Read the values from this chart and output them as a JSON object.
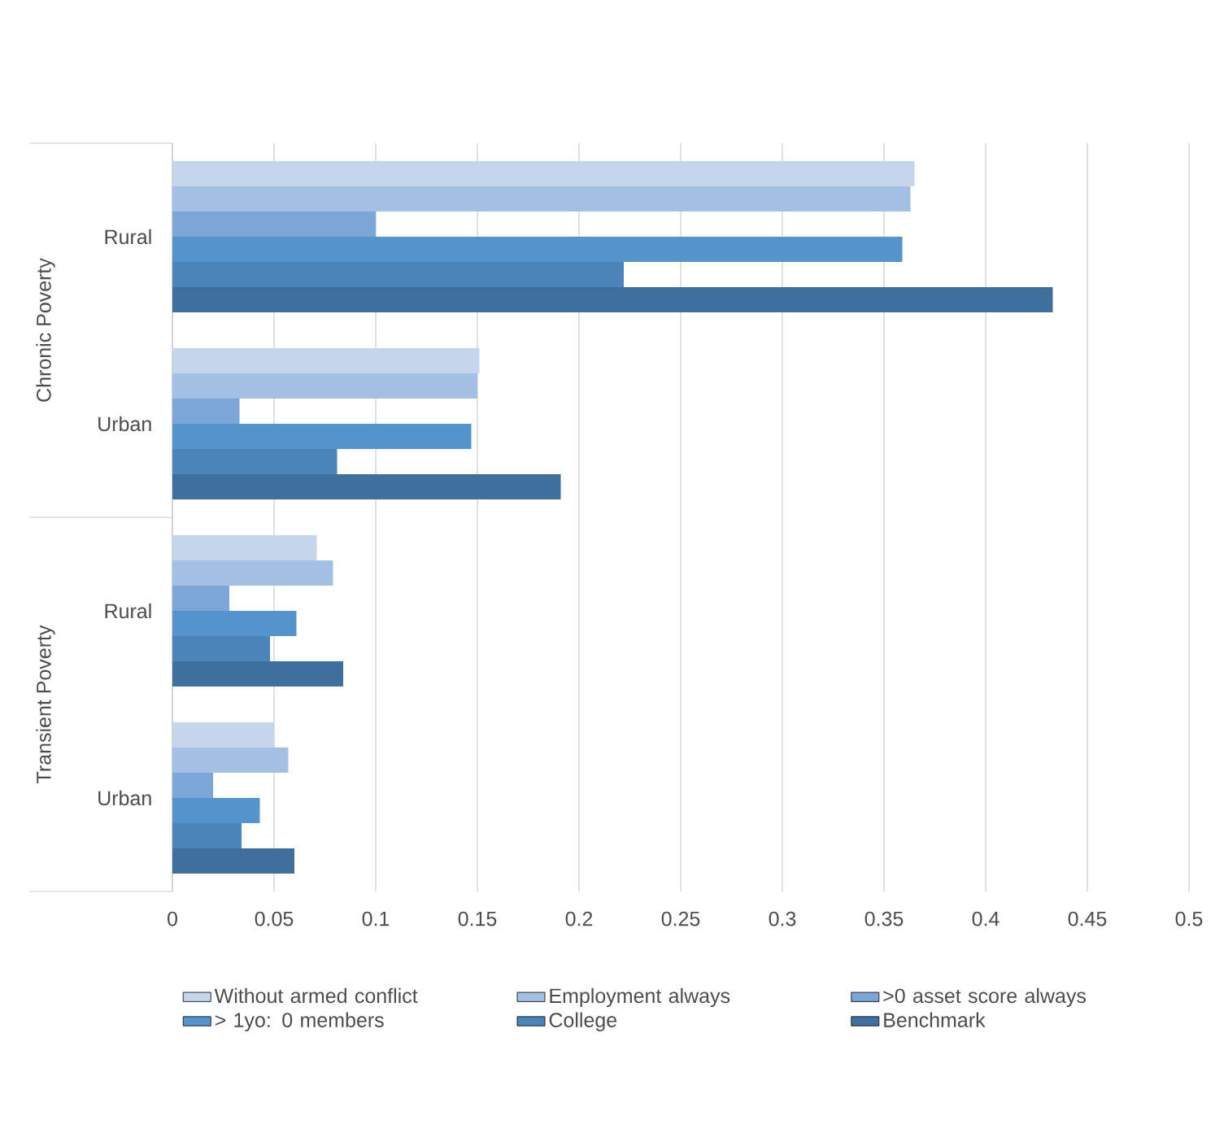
{
  "chart_data": {
    "type": "bar",
    "orientation": "horizontal",
    "categories": [
      "Rural",
      "Urban",
      "Rural",
      "Urban"
    ],
    "annotations": [
      "Chronic Poverty",
      "Transient Poverty"
    ],
    "series": [
      {
        "name": "Without armed conflict",
        "color": "#c5d5eb",
        "values": [
          0.365,
          0.151,
          0.071,
          0.05
        ]
      },
      {
        "name": "Employment always",
        "color": "#a3bfe3",
        "values": [
          0.363,
          0.15,
          0.079,
          0.057
        ]
      },
      {
        "name": ">0 asset score always",
        "color": "#7ba6d7",
        "values": [
          0.1,
          0.033,
          0.028,
          0.02
        ]
      },
      {
        "name": "> 1yo: 0 members",
        "color": "#5593cc",
        "values": [
          0.359,
          0.147,
          0.061,
          0.043
        ]
      },
      {
        "name": "College",
        "color": "#4a84b9",
        "values": [
          0.222,
          0.081,
          0.048,
          0.034
        ]
      },
      {
        "name": "Benchmark",
        "color": "#3e6f9d",
        "values": [
          0.433,
          0.191,
          0.084,
          0.06
        ]
      }
    ],
    "xlim": [
      0,
      0.5
    ],
    "xticks": [
      0,
      0.05,
      0.1,
      0.15,
      0.2,
      0.25,
      0.3,
      0.35,
      0.4,
      0.45,
      0.5
    ],
    "grid": "x",
    "legend": "bottom"
  }
}
